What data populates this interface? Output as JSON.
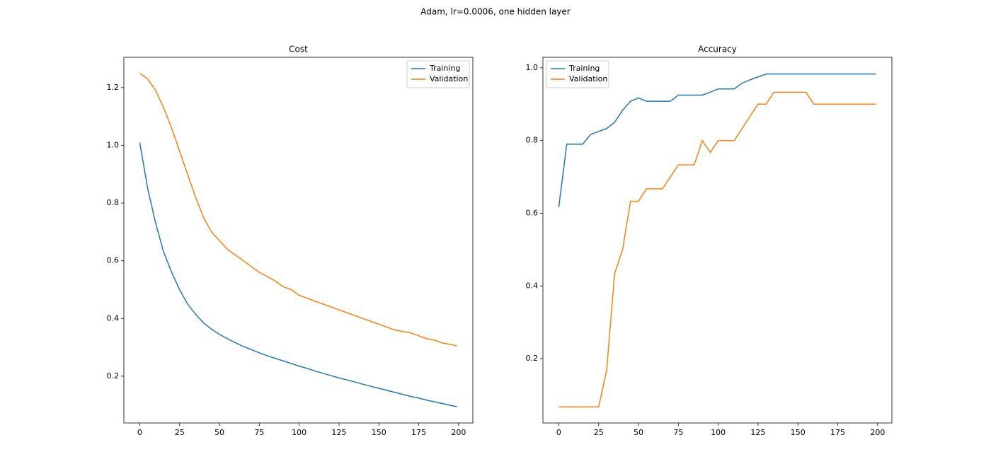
{
  "title": "Adam, lr=0.0006, one hidden layer",
  "chart_data": [
    {
      "type": "line",
      "title": "Cost",
      "x": [
        0,
        5,
        10,
        15,
        20,
        25,
        30,
        35,
        40,
        45,
        50,
        55,
        60,
        65,
        70,
        75,
        80,
        85,
        90,
        95,
        100,
        105,
        110,
        115,
        120,
        125,
        130,
        135,
        140,
        145,
        150,
        155,
        160,
        165,
        170,
        175,
        180,
        185,
        190,
        195,
        199
      ],
      "series": [
        {
          "name": "Training",
          "color": "#1f77b4",
          "values": [
            1.01,
            0.85,
            0.73,
            0.63,
            0.56,
            0.5,
            0.45,
            0.415,
            0.385,
            0.363,
            0.345,
            0.33,
            0.316,
            0.303,
            0.292,
            0.281,
            0.271,
            0.262,
            0.253,
            0.244,
            0.235,
            0.227,
            0.218,
            0.21,
            0.202,
            0.194,
            0.187,
            0.18,
            0.172,
            0.165,
            0.158,
            0.151,
            0.144,
            0.137,
            0.13,
            0.124,
            0.117,
            0.111,
            0.105,
            0.099,
            0.094
          ]
        },
        {
          "name": "Validation",
          "color": "#ff7f0e",
          "values": [
            1.25,
            1.23,
            1.19,
            1.13,
            1.06,
            0.98,
            0.9,
            0.82,
            0.75,
            0.7,
            0.67,
            0.64,
            0.62,
            0.6,
            0.58,
            0.56,
            0.545,
            0.53,
            0.51,
            0.5,
            0.48,
            0.47,
            0.46,
            0.45,
            0.44,
            0.43,
            0.42,
            0.41,
            0.4,
            0.39,
            0.38,
            0.37,
            0.36,
            0.355,
            0.35,
            0.34,
            0.33,
            0.325,
            0.315,
            0.31,
            0.305
          ]
        }
      ],
      "xlim": [
        -9.95,
        208.95
      ],
      "xticks": [
        0,
        25,
        50,
        75,
        100,
        125,
        150,
        175,
        200
      ],
      "ylim": [
        0.038,
        1.305
      ],
      "yticks": [
        0.2,
        0.4,
        0.6,
        0.8,
        {
          "value": 1,
          "label": "1.0"
        },
        1.2
      ],
      "legend": "upper right"
    },
    {
      "type": "line",
      "title": "Accuracy",
      "x": [
        0,
        5,
        10,
        15,
        20,
        25,
        30,
        35,
        40,
        45,
        50,
        55,
        60,
        65,
        70,
        75,
        80,
        85,
        90,
        95,
        100,
        105,
        110,
        115,
        120,
        125,
        130,
        135,
        140,
        145,
        150,
        155,
        160,
        165,
        170,
        175,
        180,
        185,
        190,
        195,
        199
      ],
      "series": [
        {
          "name": "Training",
          "color": "#1f77b4",
          "values": [
            0.617,
            0.79,
            0.79,
            0.79,
            0.817,
            0.825,
            0.833,
            0.85,
            0.883,
            0.908,
            0.917,
            0.908,
            0.908,
            0.908,
            0.908,
            0.925,
            0.925,
            0.925,
            0.925,
            0.933,
            0.942,
            0.942,
            0.942,
            0.958,
            0.967,
            0.975,
            0.983,
            0.983,
            0.983,
            0.983,
            0.983,
            0.983,
            0.983,
            0.983,
            0.983,
            0.983,
            0.983,
            0.983,
            0.983,
            0.983,
            0.983
          ]
        },
        {
          "name": "Validation",
          "color": "#ff7f0e",
          "values": [
            0.067,
            0.067,
            0.067,
            0.067,
            0.067,
            0.067,
            0.167,
            0.433,
            0.5,
            0.633,
            0.633,
            0.667,
            0.667,
            0.667,
            0.7,
            0.733,
            0.733,
            0.733,
            0.8,
            0.767,
            0.8,
            0.8,
            0.8,
            0.833,
            0.867,
            0.9,
            0.9,
            0.933,
            0.933,
            0.933,
            0.933,
            0.933,
            0.9,
            0.9,
            0.9,
            0.9,
            0.9,
            0.9,
            0.9,
            0.9,
            0.9
          ]
        }
      ],
      "xlim": [
        -9.95,
        208.95
      ],
      "xticks": [
        0,
        25,
        50,
        75,
        100,
        125,
        150,
        175,
        200
      ],
      "ylim": [
        0.023,
        1.029
      ],
      "yticks": [
        0.2,
        0.4,
        0.6,
        0.8,
        {
          "value": 1,
          "label": "1.0"
        }
      ],
      "legend": "upper left"
    }
  ]
}
